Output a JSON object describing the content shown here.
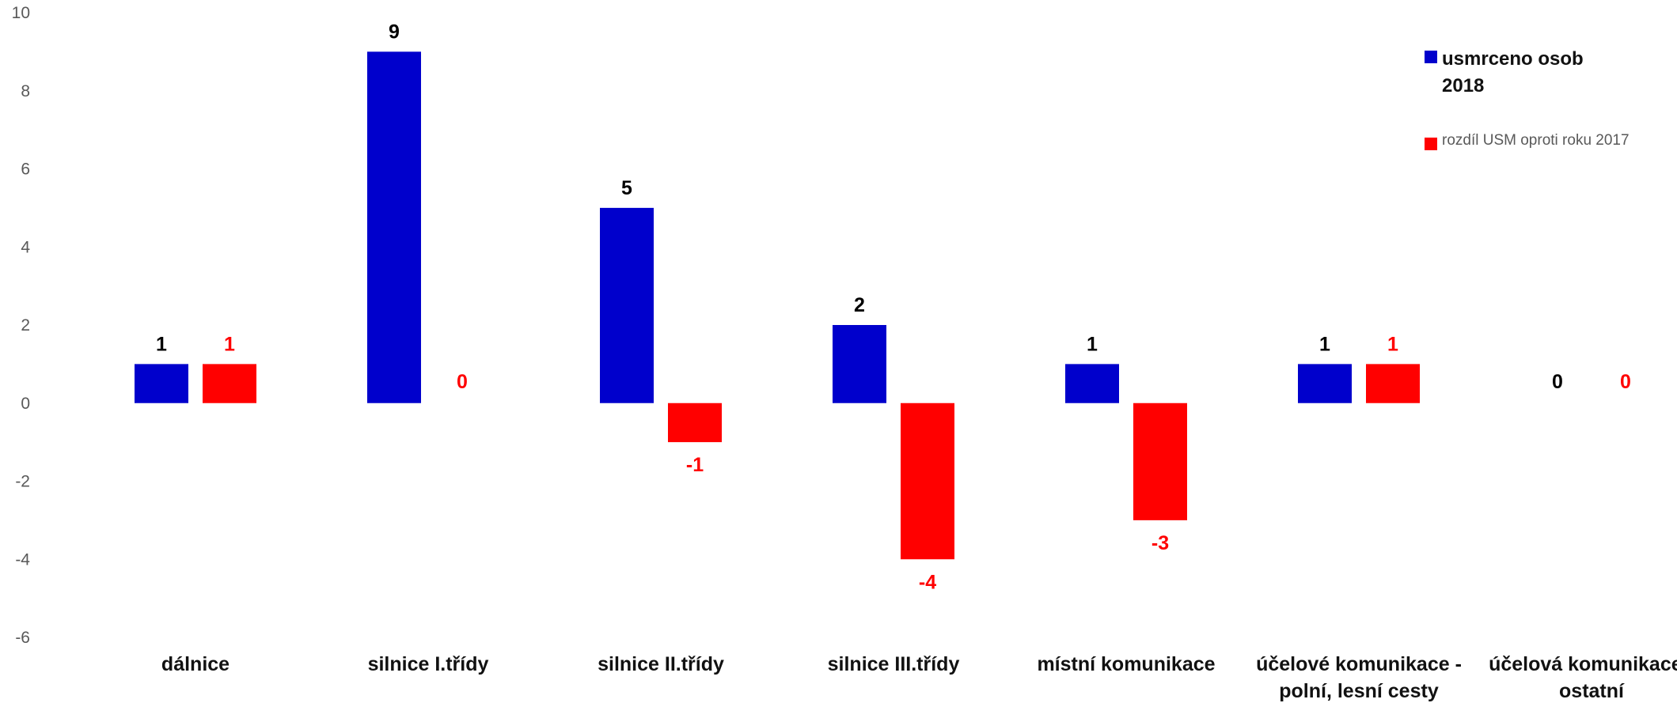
{
  "chart_data": {
    "type": "bar",
    "categories": [
      "dálnice",
      "silnice I.třídy",
      "silnice II.třídy",
      "silnice III.třídy",
      "místní komunikace",
      "účelové komunikace - polní, lesní cesty",
      "účelová komunikace - ostatní"
    ],
    "series": [
      {
        "name": "usmrceno osob 2018",
        "color": "#0000CC",
        "label_color": "#000000",
        "values": [
          1,
          9,
          5,
          2,
          1,
          1,
          0
        ]
      },
      {
        "name": "rozdíl USM oproti roku 2017",
        "color": "#FF0000",
        "label_color": "#FF0000",
        "values": [
          1,
          0,
          -1,
          -4,
          -3,
          1,
          0
        ]
      }
    ],
    "ylim": [
      -6,
      10
    ],
    "yticks": [
      "10",
      "8",
      "6",
      "4",
      "2",
      "0",
      "-2",
      "-4",
      "-6"
    ],
    "legend_position": "top-right",
    "grid": false
  }
}
